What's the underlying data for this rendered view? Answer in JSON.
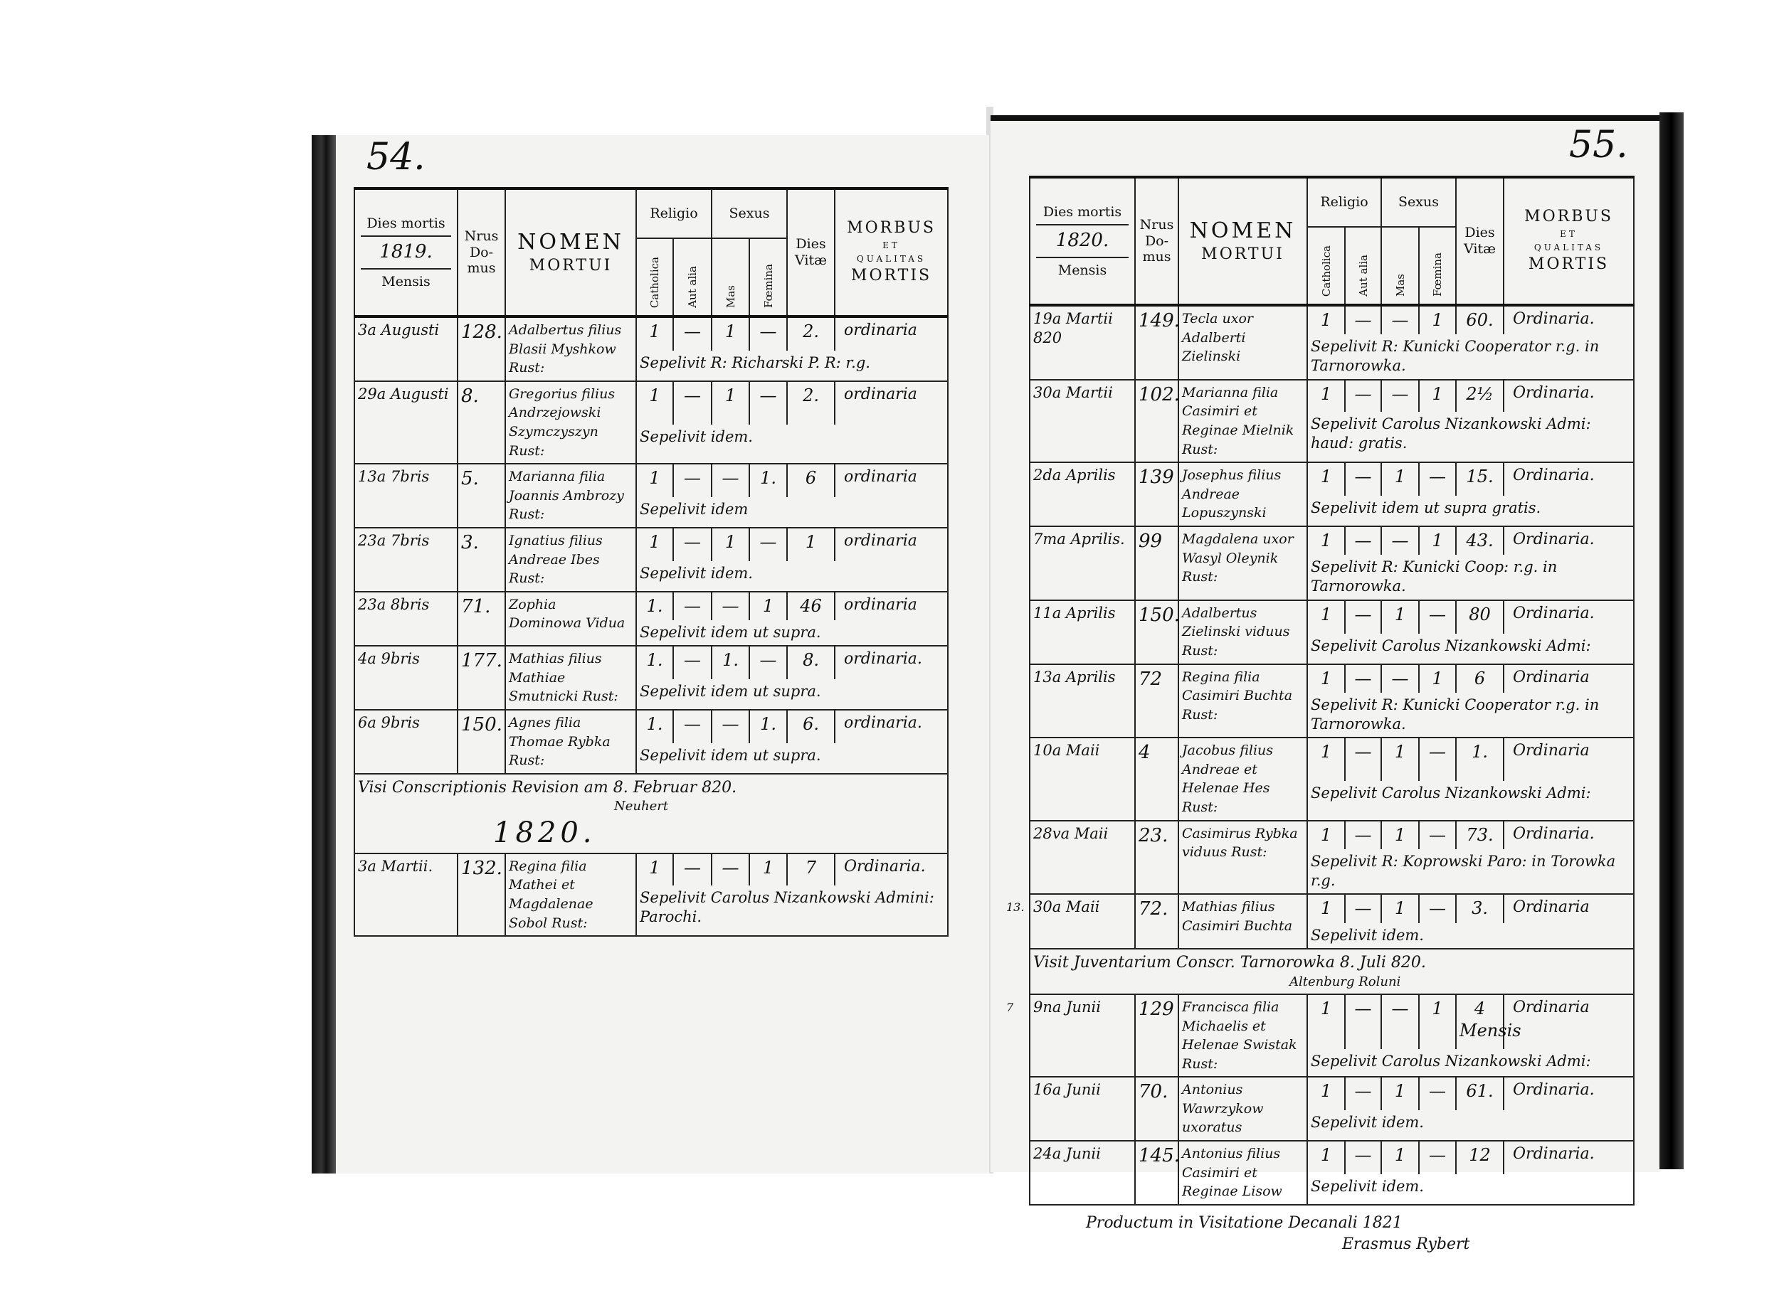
{
  "header": {
    "dies_mortis": "Dies mortis",
    "mensis": "Mensis",
    "nrus": "Nrus",
    "domus": "Do-\nmus",
    "nomen": "NOMEN",
    "mortui": "MORTUI",
    "religio": "Religio",
    "catholica": "Catholica",
    "aut_alia": "Aut alia",
    "sexus": "Sexus",
    "mas": "Mas",
    "foemina": "Fœmina",
    "dies_vitae": "Dies\nVitæ",
    "morbus": "MORBUS",
    "et": "ET",
    "qualitas": "QUALITAS",
    "mortis": "MORTIS"
  },
  "left_page": {
    "page_number": "54.",
    "year": "1819.",
    "entries": [
      {
        "date": "3a Augusti",
        "house": "128.",
        "name": "Adalbertus filius Blasii Myshkow Rust:",
        "catholica": "1",
        "aut_alia": "—",
        "mas": "1",
        "foemina": "—",
        "dies_vitae": "2.",
        "morbus": "ordinaria",
        "note": "Sepelivit R: Richarski P. R: r.g."
      },
      {
        "date": "29a Augusti",
        "house": "8.",
        "name": "Gregorius filius Andrzejowski Szymczyszyn Rust:",
        "catholica": "1",
        "aut_alia": "—",
        "mas": "1",
        "foemina": "—",
        "dies_vitae": "2.",
        "morbus": "ordinaria",
        "note": "Sepelivit idem."
      },
      {
        "date": "13a 7bris",
        "house": "5.",
        "name": "Marianna filia Joannis Ambrozy Rust:",
        "catholica": "1",
        "aut_alia": "—",
        "mas": "—",
        "foemina": "1.",
        "dies_vitae": "6",
        "morbus": "ordinaria",
        "note": "Sepelivit idem"
      },
      {
        "date": "23a 7bris",
        "house": "3.",
        "name": "Ignatius filius Andreae Ibes Rust:",
        "catholica": "1",
        "aut_alia": "—",
        "mas": "1",
        "foemina": "—",
        "dies_vitae": "1",
        "morbus": "ordinaria",
        "note": "Sepelivit idem."
      },
      {
        "date": "23a 8bris",
        "house": "71.",
        "name": "Zophia Dominowa Vidua",
        "catholica": "1.",
        "aut_alia": "—",
        "mas": "—",
        "foemina": "1",
        "dies_vitae": "46",
        "morbus": "ordinaria",
        "note": "Sepelivit idem ut supra."
      },
      {
        "date": "4a 9bris",
        "house": "177.",
        "name": "Mathias filius Mathiae Smutnicki Rust:",
        "catholica": "1.",
        "aut_alia": "—",
        "mas": "1.",
        "foemina": "—",
        "dies_vitae": "8.",
        "morbus": "ordinaria.",
        "note": "Sepelivit idem ut supra."
      },
      {
        "date": "6a 9bris",
        "house": "150.",
        "name": "Agnes filia Thomae Rybka Rust:",
        "catholica": "1.",
        "aut_alia": "—",
        "mas": "—",
        "foemina": "1.",
        "dies_vitae": "6.",
        "morbus": "ordinaria.",
        "note": "Sepelivit idem ut supra."
      },
      {
        "date": "3a Martii.",
        "house": "132.",
        "name": "Regina filia Mathei et Magdalenae Sobol Rust:",
        "catholica": "1",
        "aut_alia": "—",
        "mas": "—",
        "foemina": "1",
        "dies_vitae": "7",
        "morbus": "Ordinaria.",
        "note": "Sepelivit Carolus Nizankowski Admini: Parochi."
      }
    ],
    "annotation": "Visi Conscriptionis Revision am 8. Februar 820.",
    "annotation_signature": "Neuhert",
    "new_year": "1820."
  },
  "right_page": {
    "page_number": "55.",
    "year": "1820.",
    "entries": [
      {
        "date": "19a Martii 820",
        "house": "149.",
        "name": "Tecla uxor Adalberti Zielinski",
        "catholica": "1",
        "aut_alia": "—",
        "mas": "—",
        "foemina": "1",
        "dies_vitae": "60.",
        "morbus": "Ordinaria.",
        "note": "Sepelivit R: Kunicki Cooperator r.g. in Tarnorowka."
      },
      {
        "date": "30a Martii",
        "house": "102.",
        "name": "Marianna filia Casimiri et Reginae Mielnik Rust:",
        "catholica": "1",
        "aut_alia": "—",
        "mas": "—",
        "foemina": "1",
        "dies_vitae": "2½",
        "morbus": "Ordinaria.",
        "note": "Sepelivit Carolus Nizankowski Admi: haud: gratis."
      },
      {
        "date": "2da Aprilis",
        "house": "139",
        "name": "Josephus filius Andreae Lopuszynski",
        "catholica": "1",
        "aut_alia": "—",
        "mas": "1",
        "foemina": "—",
        "dies_vitae": "15.",
        "morbus": "Ordinaria.",
        "note": "Sepelivit idem ut supra gratis."
      },
      {
        "date": "7ma Aprilis.",
        "house": "99",
        "name": "Magdalena uxor Wasyl Oleynik Rust:",
        "catholica": "1",
        "aut_alia": "—",
        "mas": "—",
        "foemina": "1",
        "dies_vitae": "43.",
        "morbus": "Ordinaria.",
        "note": "Sepelivit R: Kunicki Coop: r.g. in Tarnorowka."
      },
      {
        "date": "11a Aprilis",
        "house": "150.",
        "name": "Adalbertus Zielinski viduus Rust:",
        "catholica": "1",
        "aut_alia": "—",
        "mas": "1",
        "foemina": "—",
        "dies_vitae": "80",
        "morbus": "Ordinaria.",
        "note": "Sepelivit Carolus Nizankowski Admi:"
      },
      {
        "date": "13a Aprilis",
        "house": "72",
        "name": "Regina filia Casimiri Buchta Rust:",
        "catholica": "1",
        "aut_alia": "—",
        "mas": "—",
        "foemina": "1",
        "dies_vitae": "6",
        "morbus": "Ordinaria",
        "note": "Sepelivit R: Kunicki Cooperator r.g. in Tarnorowka."
      },
      {
        "date": "10a Maii",
        "house": "4",
        "name": "Jacobus filius Andreae et Helenae Hes Rust:",
        "catholica": "1",
        "aut_alia": "—",
        "mas": "1",
        "foemina": "—",
        "dies_vitae": "1.",
        "morbus": "Ordinaria",
        "note": "Sepelivit Carolus Nizankowski Admi:"
      },
      {
        "date": "28va Maii",
        "house": "23.",
        "name": "Casimirus Rybka viduus Rust:",
        "catholica": "1",
        "aut_alia": "—",
        "mas": "1",
        "foemina": "—",
        "dies_vitae": "73.",
        "morbus": "Ordinaria.",
        "note": "Sepelivit R: Koprowski Paro: in Torowka r.g."
      },
      {
        "date": "30a Maii",
        "house": "72.",
        "name": "Mathias filius Casimiri Buchta",
        "catholica": "1",
        "aut_alia": "—",
        "mas": "1",
        "foemina": "—",
        "dies_vitae": "3.",
        "morbus": "Ordinaria",
        "note": "Sepelivit idem."
      },
      {
        "date": "9na Junii",
        "house": "129",
        "name": "Francisca filia Michaelis et Helenae Swistak Rust:",
        "catholica": "1",
        "aut_alia": "—",
        "mas": "—",
        "foemina": "1",
        "dies_vitae": "4 Mensis",
        "morbus": "Ordinaria",
        "note": "Sepelivit Carolus Nizankowski Admi:"
      },
      {
        "date": "16a Junii",
        "house": "70.",
        "name": "Antonius Wawrzykow uxoratus",
        "catholica": "1",
        "aut_alia": "—",
        "mas": "1",
        "foemina": "—",
        "dies_vitae": "61.",
        "morbus": "Ordinaria.",
        "note": "Sepelivit idem."
      },
      {
        "date": "24a Junii",
        "house": "145.",
        "name": "Antonius filius Casimiri et Reginae Lisow",
        "catholica": "1",
        "aut_alia": "—",
        "mas": "1",
        "foemina": "—",
        "dies_vitae": "12",
        "morbus": "Ordinaria.",
        "note": "Sepelivit idem."
      }
    ],
    "annotation": "Visit Juventarium Conscr. Tarnorowka 8. Juli 820.",
    "annotation_signature": "Altenburg Roluni",
    "closing_annotation": "Productum in Visitatione Decanali 1821",
    "closing_signature": "Erasmus Rybert",
    "margin_notes": [
      "13.",
      "7"
    ]
  }
}
